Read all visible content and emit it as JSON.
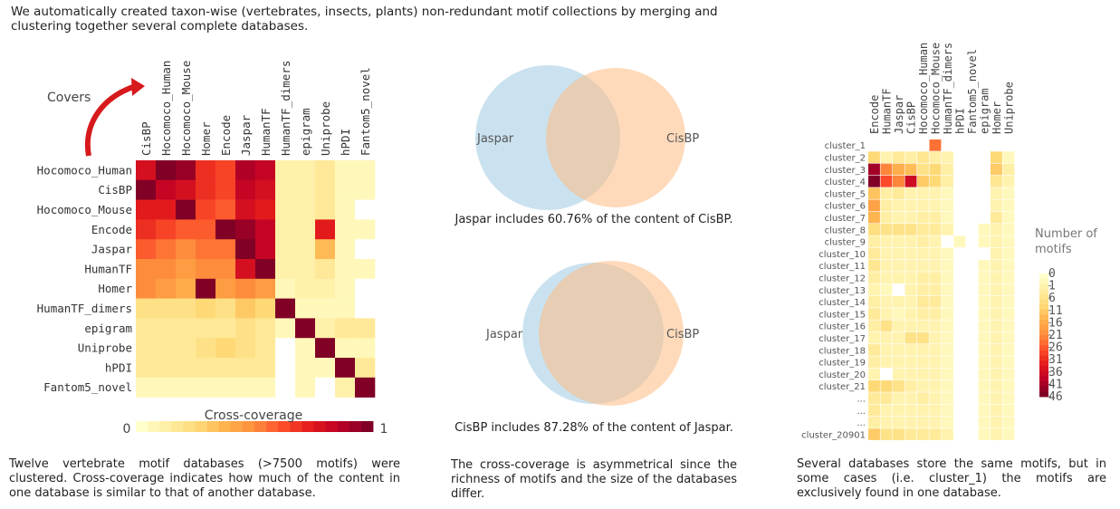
{
  "intro_text": "We automatically created taxon-wise (vertebrates, insects, plants) non-redundant motif collections by merging and clustering together several complete databases.",
  "covers_label": "Covers",
  "colors": {
    "low": "#ffffcc",
    "mid": "#fd8d3c",
    "high": "#800026",
    "venn_left": "#9ecae1",
    "venn_right": "#fdbb84"
  },
  "chart_data": [
    {
      "type": "heatmap",
      "title": "",
      "legend_title": "Cross-coverage",
      "legend_min_label": "0",
      "legend_max_label": "1",
      "columns": [
        "CisBP",
        "Hocomoco_Human",
        "Hocomoco_Mouse",
        "Homer",
        "Encode",
        "Jaspar",
        "HumanTF",
        "HumanTF_dimers",
        "epigram",
        "Uniprobe",
        "hPDI",
        "Fantom5_novel"
      ],
      "rows": [
        "Hocomoco_Human",
        "CisBP",
        "Hocomoco_Mouse",
        "Encode",
        "Jaspar",
        "HumanTF",
        "Homer",
        "HumanTF_dimers",
        "epigram",
        "Uniprobe",
        "hPDI",
        "Fantom5_novel"
      ],
      "values": [
        [
          0.8,
          1.0,
          0.95,
          0.7,
          0.65,
          0.9,
          0.85,
          0.1,
          0.1,
          0.15,
          0.05,
          0.05
        ],
        [
          1.0,
          0.85,
          0.8,
          0.7,
          0.65,
          0.85,
          0.8,
          0.1,
          0.1,
          0.15,
          0.05,
          0.05
        ],
        [
          0.75,
          0.75,
          1.0,
          0.65,
          0.6,
          0.8,
          0.75,
          0.1,
          0.1,
          0.15,
          0.05,
          0.0
        ],
        [
          0.7,
          0.65,
          0.6,
          0.6,
          1.0,
          0.95,
          0.85,
          0.1,
          0.1,
          0.75,
          0.05,
          0.05
        ],
        [
          0.6,
          0.55,
          0.5,
          0.55,
          0.55,
          1.0,
          0.85,
          0.1,
          0.1,
          0.35,
          0.05,
          0.0
        ],
        [
          0.5,
          0.5,
          0.45,
          0.5,
          0.5,
          0.8,
          1.0,
          0.1,
          0.1,
          0.15,
          0.05,
          0.05
        ],
        [
          0.5,
          0.45,
          0.4,
          1.0,
          0.45,
          0.5,
          0.45,
          0.05,
          0.1,
          0.1,
          0.05,
          0.0
        ],
        [
          0.2,
          0.2,
          0.2,
          0.25,
          0.2,
          0.3,
          0.25,
          1.0,
          0.05,
          0.05,
          0.05,
          0.0
        ],
        [
          0.15,
          0.15,
          0.15,
          0.15,
          0.15,
          0.2,
          0.15,
          0.05,
          1.0,
          0.1,
          0.15,
          0.15
        ],
        [
          0.15,
          0.15,
          0.15,
          0.2,
          0.25,
          0.2,
          0.15,
          0.0,
          0.05,
          1.0,
          0.05,
          0.05
        ],
        [
          0.15,
          0.15,
          0.15,
          0.15,
          0.15,
          0.15,
          0.15,
          0.0,
          0.05,
          0.05,
          1.0,
          0.15
        ],
        [
          0.05,
          0.05,
          0.05,
          0.05,
          0.05,
          0.05,
          0.05,
          0.0,
          0.05,
          0.0,
          0.1,
          1.0
        ]
      ]
    },
    {
      "type": "venn",
      "sets": [
        {
          "name": "Jaspar"
        },
        {
          "name": "CisBP"
        }
      ],
      "caption": "Jaspar includes 60.76% of the content of CisBP."
    },
    {
      "type": "venn",
      "sets": [
        {
          "name": "Jaspar"
        },
        {
          "name": "CisBP"
        }
      ],
      "caption": "CisBP includes 87.28% of the content of Jaspar."
    },
    {
      "type": "heatmap",
      "legend_title": "Number of motifs",
      "legend_ticks": [
        "0",
        "1",
        "6",
        "11",
        "16",
        "21",
        "26",
        "31",
        "36",
        "41",
        "46"
      ],
      "columns": [
        "Encode",
        "HumanTF",
        "Jaspar",
        "CisBP",
        "Hocomoco_Human",
        "Hocomoco_Mouse",
        "HumanTF_dimers",
        "hPDI",
        "Fantom5_novel",
        "epigram",
        "Homer",
        "Uniprobe"
      ],
      "rows": [
        "cluster_1",
        "cluster_2",
        "cluster_3",
        "cluster_4",
        "cluster_5",
        "cluster_6",
        "cluster_7",
        "cluster_8",
        "cluster_9",
        "cluster_10",
        "cluster_11",
        "cluster_12",
        "cluster_13",
        "cluster_14",
        "cluster_15",
        "cluster_16",
        "cluster_17",
        "cluster_18",
        "cluster_19",
        "cluster_20",
        "cluster_21",
        "...",
        "...",
        "...",
        "cluster_20901"
      ],
      "values": [
        [
          0,
          0,
          0,
          0,
          0,
          22,
          0,
          0,
          0,
          0,
          0,
          0
        ],
        [
          8,
          2,
          4,
          3,
          5,
          3,
          2,
          0,
          0,
          0,
          8,
          1
        ],
        [
          42,
          20,
          14,
          12,
          6,
          8,
          3,
          0,
          0,
          0,
          10,
          3
        ],
        [
          46,
          26,
          20,
          36,
          10,
          8,
          3,
          0,
          0,
          0,
          5,
          2
        ],
        [
          11,
          3,
          4,
          2,
          2,
          2,
          1,
          0,
          0,
          0,
          2,
          1
        ],
        [
          16,
          3,
          2,
          2,
          2,
          2,
          1,
          0,
          0,
          0,
          2,
          1
        ],
        [
          13,
          3,
          2,
          2,
          3,
          3,
          1,
          0,
          0,
          0,
          4,
          1
        ],
        [
          7,
          6,
          6,
          6,
          4,
          4,
          2,
          0,
          0,
          1,
          2,
          1
        ],
        [
          3,
          2,
          2,
          2,
          3,
          2,
          0,
          1,
          0,
          1,
          2,
          1
        ],
        [
          4,
          2,
          2,
          2,
          2,
          2,
          1,
          0,
          0,
          0,
          2,
          1
        ],
        [
          5,
          2,
          2,
          2,
          2,
          2,
          1,
          0,
          0,
          1,
          2,
          1
        ],
        [
          3,
          2,
          2,
          2,
          3,
          3,
          1,
          0,
          0,
          1,
          2,
          1
        ],
        [
          2,
          1,
          0,
          2,
          3,
          3,
          1,
          0,
          0,
          1,
          2,
          1
        ],
        [
          3,
          2,
          2,
          2,
          4,
          4,
          1,
          0,
          0,
          1,
          2,
          1
        ],
        [
          4,
          2,
          1,
          2,
          3,
          3,
          1,
          0,
          0,
          1,
          2,
          1
        ],
        [
          3,
          6,
          2,
          2,
          2,
          2,
          1,
          0,
          0,
          1,
          2,
          1
        ],
        [
          2,
          2,
          2,
          6,
          6,
          2,
          1,
          0,
          0,
          1,
          2,
          1
        ],
        [
          4,
          2,
          2,
          2,
          2,
          2,
          1,
          0,
          0,
          1,
          2,
          1
        ],
        [
          3,
          2,
          2,
          2,
          2,
          2,
          1,
          0,
          0,
          1,
          2,
          1
        ],
        [
          2,
          0,
          2,
          2,
          2,
          2,
          1,
          0,
          0,
          1,
          2,
          1
        ],
        [
          8,
          8,
          6,
          3,
          2,
          2,
          1,
          0,
          0,
          1,
          2,
          1
        ],
        [
          4,
          4,
          2,
          2,
          3,
          2,
          1,
          0,
          0,
          1,
          2,
          1
        ],
        [
          4,
          2,
          2,
          2,
          2,
          2,
          1,
          0,
          0,
          1,
          2,
          1
        ],
        [
          3,
          2,
          2,
          2,
          2,
          2,
          1,
          0,
          0,
          1,
          2,
          1
        ],
        [
          10,
          6,
          6,
          4,
          4,
          4,
          2,
          0,
          0,
          1,
          2,
          1
        ]
      ]
    }
  ],
  "captions": {
    "left": "Twelve vertebrate motif databases (>7500 motifs) were clustered. Cross-coverage indicates how much of the content in one database is similar to that of another database.",
    "middle": "The cross-coverage is asymmetrical since the richness of motifs and the size of the databases differ.",
    "right": "Several databases store the same motifs, but in some cases (i.e. cluster_1) the motifs are exclusively found in one database."
  }
}
